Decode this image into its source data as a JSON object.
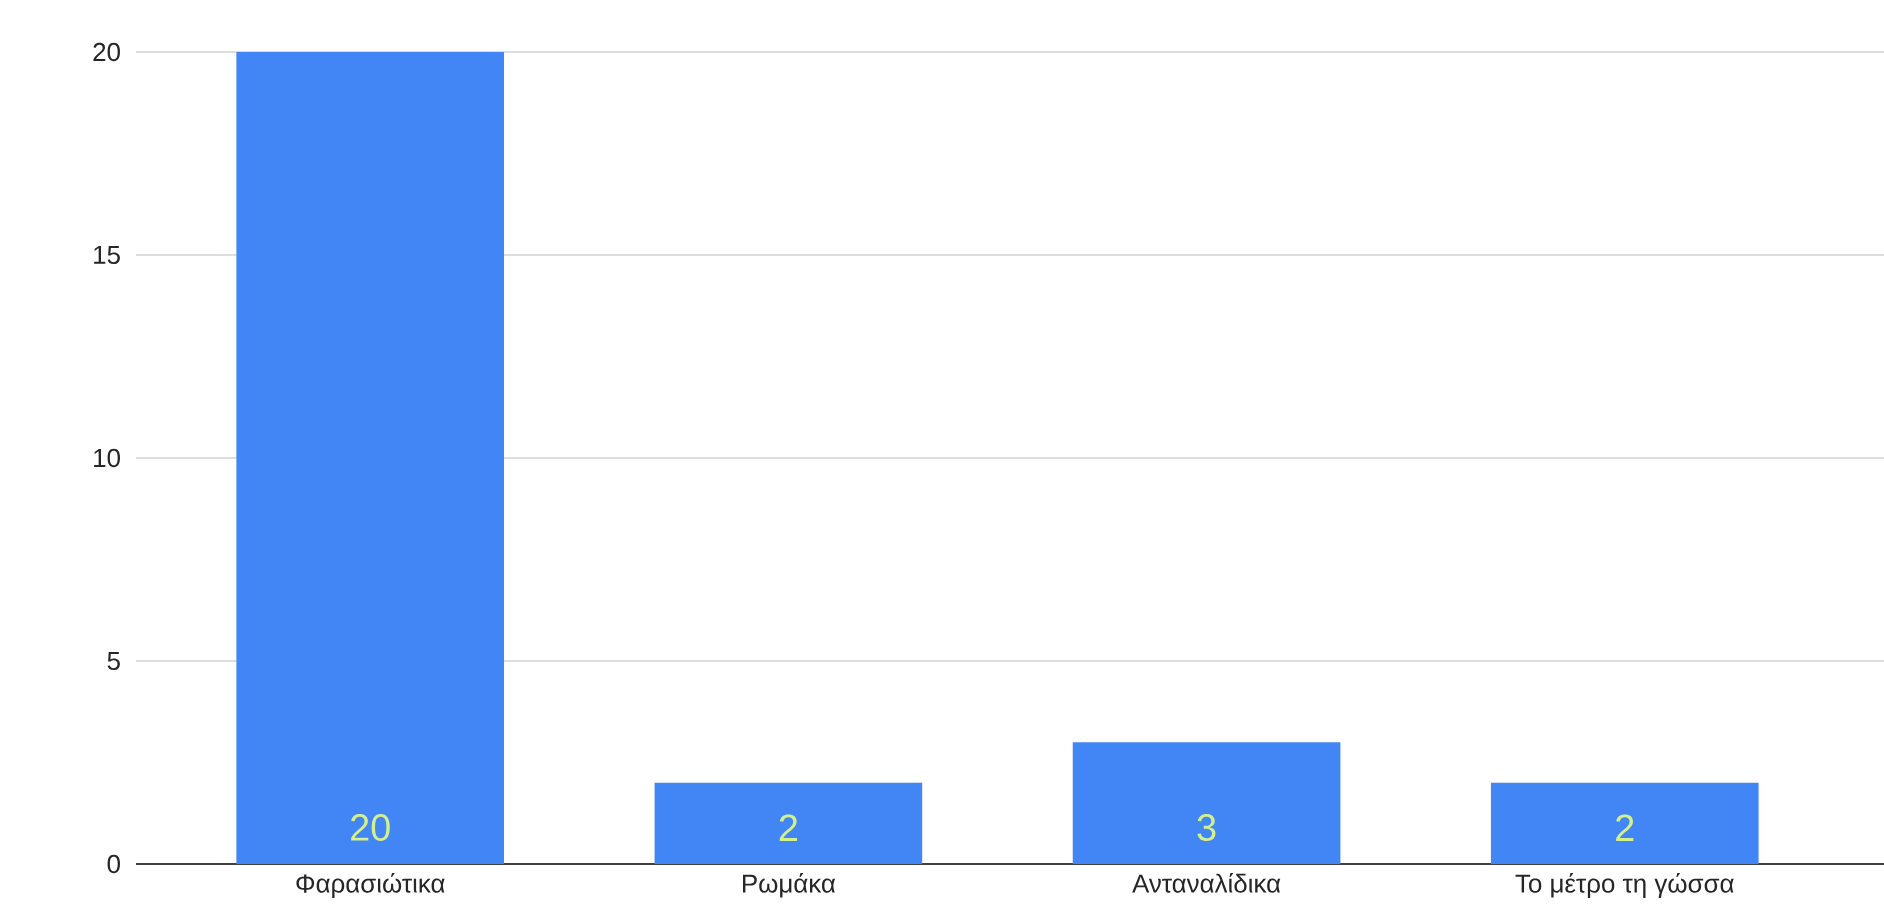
{
  "chart_data": {
    "type": "bar",
    "categories": [
      "Φαρασιώτικα",
      "Ρωμάκα",
      "Ανταναλίδικα",
      "Το μέτρο τη γώσσα"
    ],
    "values": [
      20,
      2,
      3,
      2
    ],
    "color": "#4285f4",
    "ylim": [
      0,
      20
    ],
    "yticks": [
      0,
      5,
      10,
      15,
      20
    ],
    "grid": "y",
    "data_labels": true
  }
}
